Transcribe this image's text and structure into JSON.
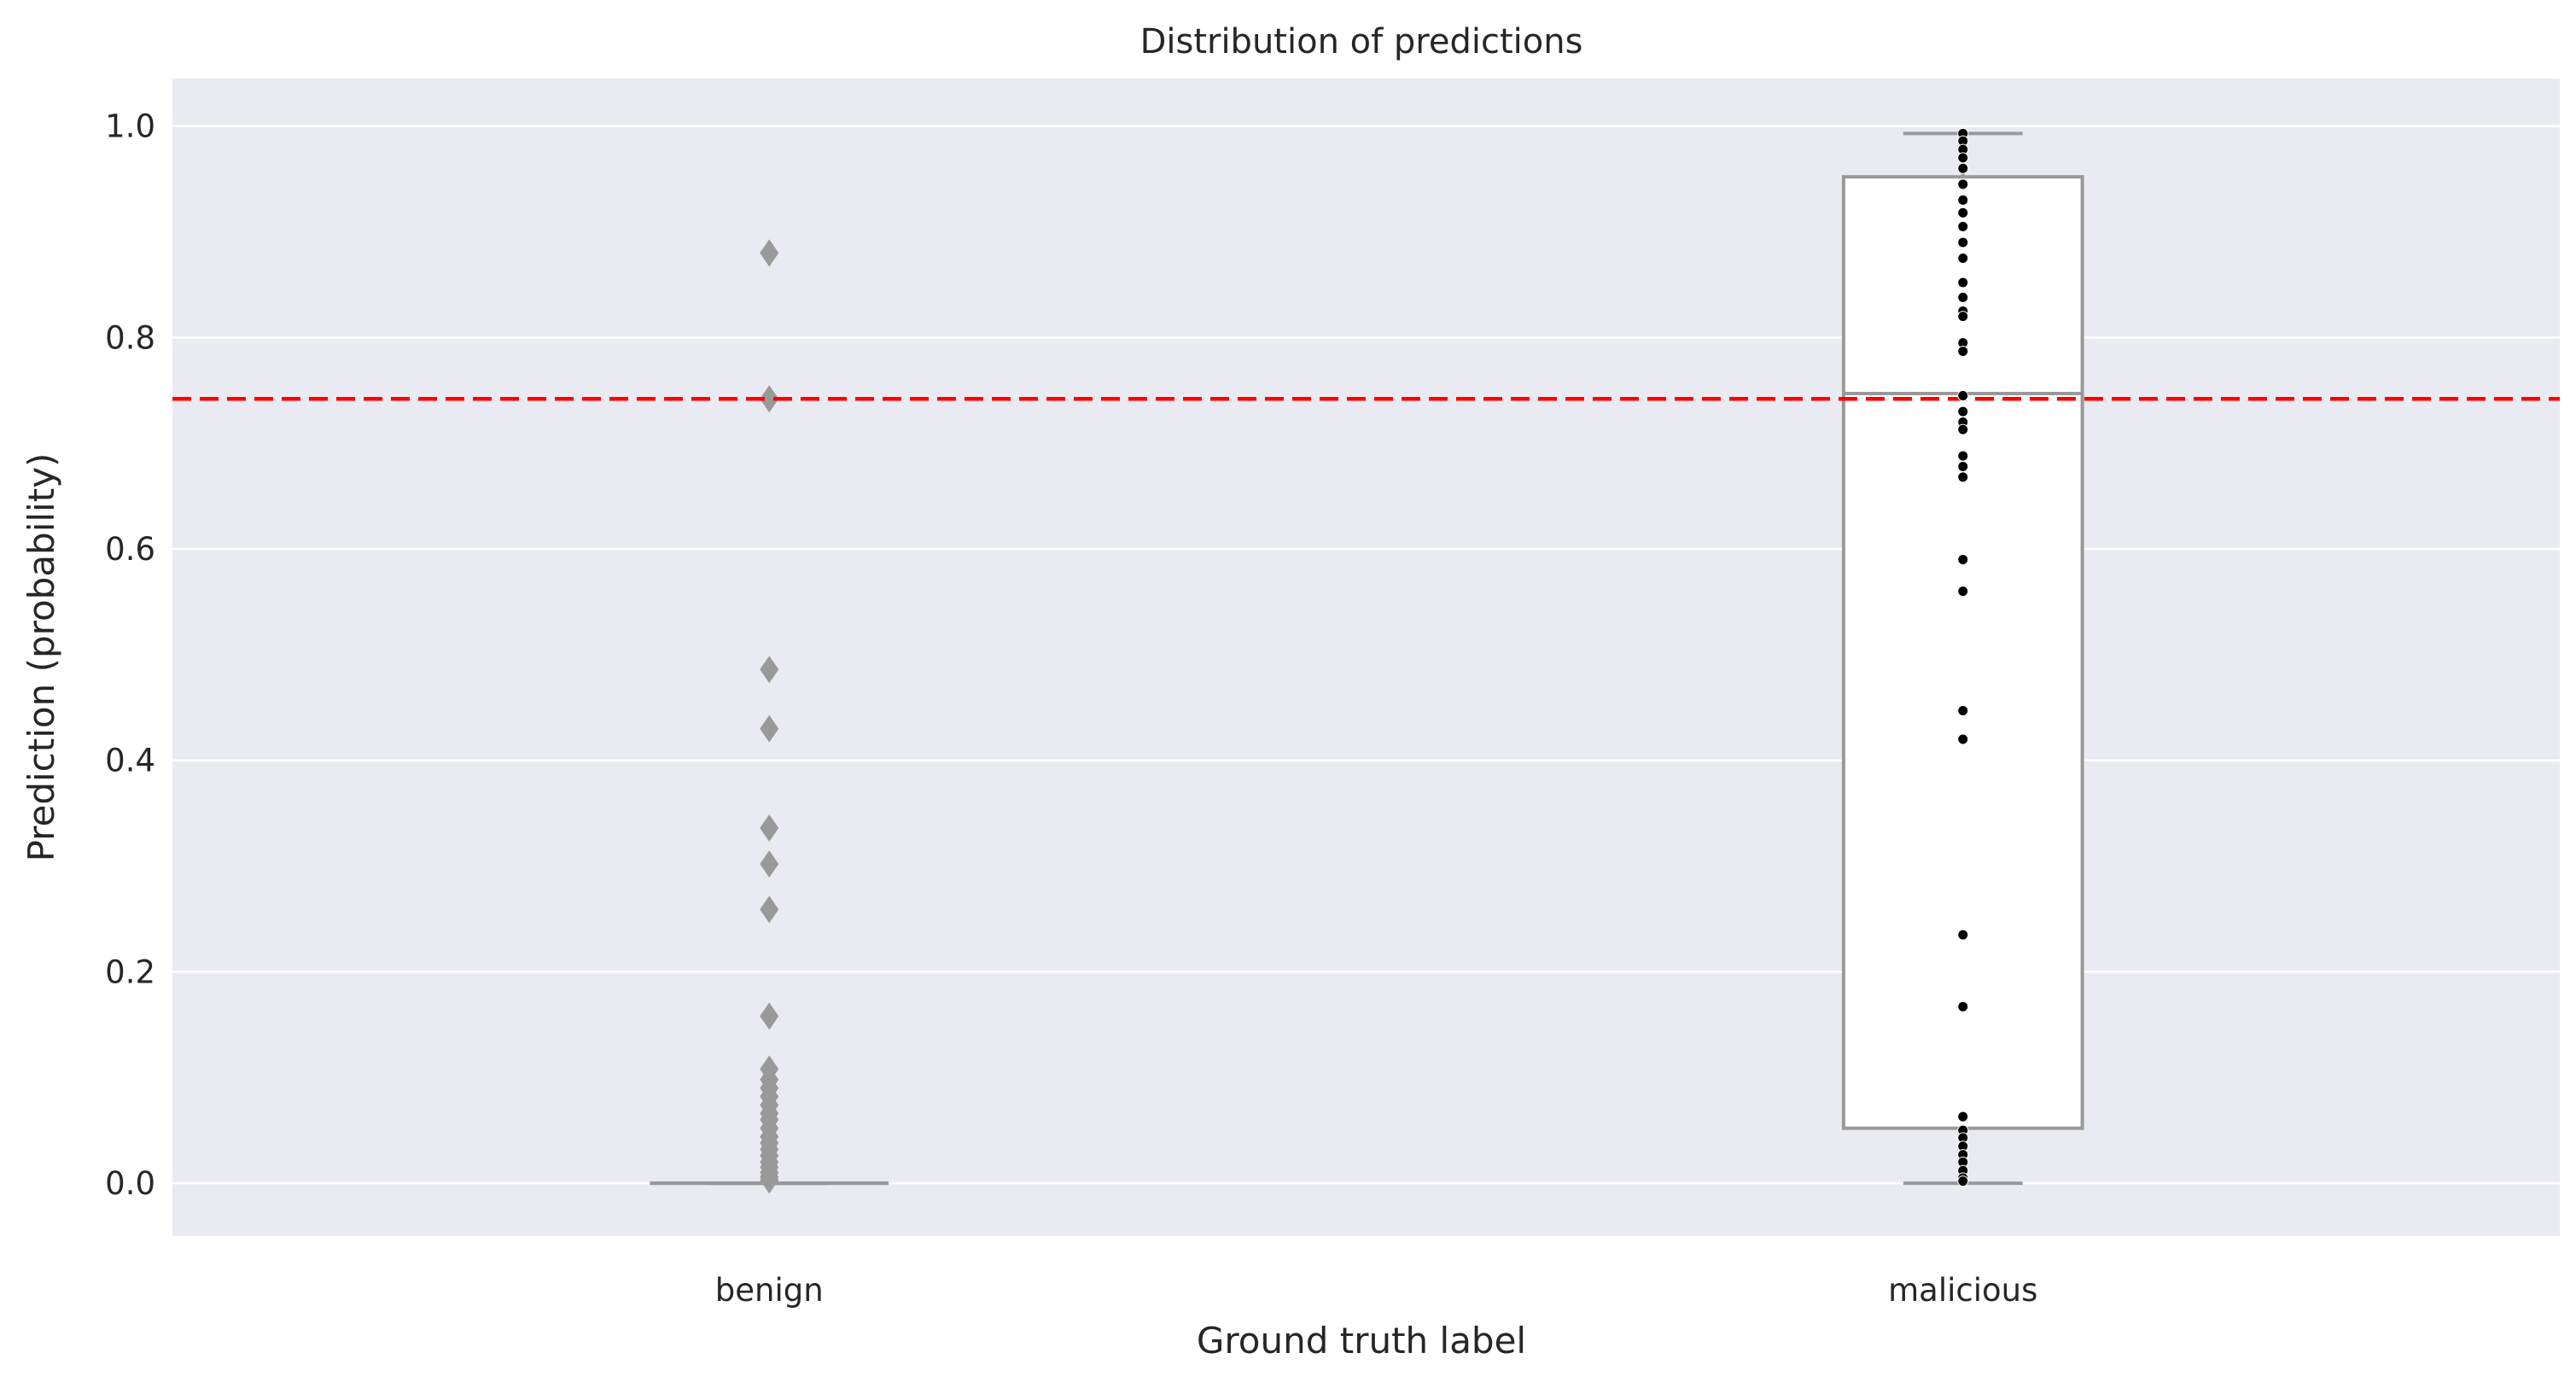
{
  "chart_data": {
    "type": "box",
    "title": "Distribution of predictions",
    "xlabel": "Ground truth label",
    "ylabel": "Prediction (probability)",
    "ylim": [
      -0.05,
      1.045
    ],
    "yticks": [
      "0.0",
      "0.2",
      "0.4",
      "0.6",
      "0.8",
      "1.0"
    ],
    "categories": [
      "benign",
      "malicious"
    ],
    "threshold": 0.742,
    "grid": true,
    "boxes": [
      {
        "category": "benign",
        "q1": 0.0,
        "median": 0.0,
        "q3": 0.0,
        "whisker_low": 0.0,
        "whisker_high": 0.0,
        "outliers": [
          0.88,
          0.742,
          0.486,
          0.43,
          0.336,
          0.302,
          0.259,
          0.158,
          0.108,
          0.098,
          0.09,
          0.082,
          0.074,
          0.066,
          0.06,
          0.052,
          0.044,
          0.038,
          0.032,
          0.026,
          0.02,
          0.015,
          0.01,
          0.006,
          0.003
        ]
      },
      {
        "category": "malicious",
        "q1": 0.052,
        "median": 0.747,
        "q3": 0.952,
        "whisker_low": 0.0,
        "whisker_high": 0.993,
        "outliers": []
      }
    ],
    "points": [
      {
        "category": "malicious",
        "values": [
          0.993,
          0.986,
          0.978,
          0.97,
          0.96,
          0.945,
          0.93,
          0.918,
          0.905,
          0.89,
          0.875,
          0.852,
          0.838,
          0.825,
          0.82,
          0.795,
          0.787,
          0.745,
          0.73,
          0.72,
          0.713,
          0.688,
          0.678,
          0.668,
          0.59,
          0.56,
          0.447,
          0.42,
          0.235,
          0.167,
          0.063,
          0.05,
          0.043,
          0.035,
          0.027,
          0.02,
          0.012,
          0.005,
          0.002
        ]
      }
    ],
    "colors": {
      "plot_background": "#EAEAF2",
      "grid": "#FFFFFF",
      "box_edge": "#999999",
      "box_fill": "#FFFFFF",
      "outlier": "#999999",
      "points": "#000000",
      "threshold": "#FF0000",
      "text": "#262626"
    }
  }
}
